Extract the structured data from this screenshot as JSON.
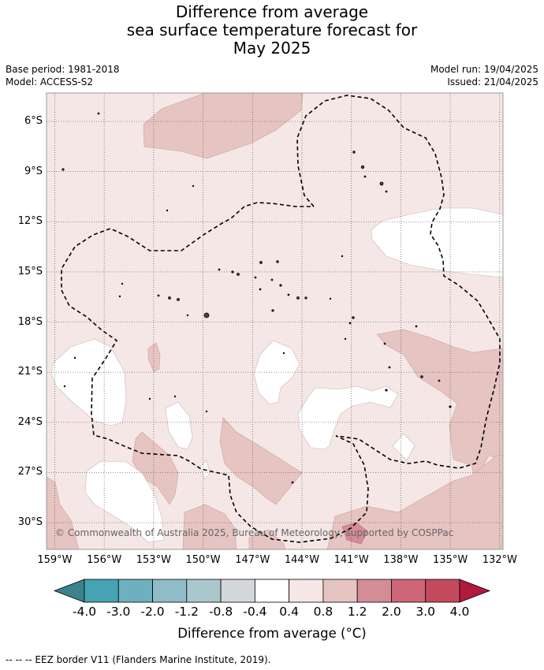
{
  "title": {
    "line1": "Difference from average",
    "line2": "sea surface temperature forecast for",
    "line3": "May 2025"
  },
  "meta": {
    "base_period": "Base period: 1981-2018",
    "model": "Model: ACCESS-S2",
    "model_run": "Model run: 19/04/2025",
    "issued": "Issued: 21/04/2025"
  },
  "map": {
    "lon_range": [
      -159.5,
      -131.8
    ],
    "lat_range": [
      -31.6,
      -4.3
    ],
    "lat_labels": [
      "6°S",
      "9°S",
      "12°S",
      "15°S",
      "18°S",
      "21°S",
      "24°S",
      "27°S",
      "30°S"
    ],
    "lon_labels": [
      "159°W",
      "156°W",
      "153°W",
      "150°W",
      "147°W",
      "144°W",
      "141°W",
      "138°W",
      "135°W",
      "132°W"
    ],
    "copyright": "© Commonwealth of Australia 2025, Bureau of Meteorology, supported by COSPPac",
    "colors": {
      "background_anomaly": "#f5e7e5",
      "near_zero": "#ffffff",
      "warm_0_8_1_2": "#e6c4c1",
      "warm_1_2_2_0": "#d48c96"
    }
  },
  "colorbar": {
    "ticks": [
      "-4.0",
      "-3.0",
      "-2.0",
      "-1.2",
      "-0.8",
      "-0.4",
      "0.4",
      "0.8",
      "1.2",
      "2.0",
      "3.0",
      "4.0"
    ],
    "colors": [
      "#3b828c",
      "#46a3b3",
      "#6db0bf",
      "#8fbcc7",
      "#aac7cc",
      "#d2d8da",
      "#ffffff",
      "#f5e7e5",
      "#e6c4c1",
      "#d48c96",
      "#cd6677",
      "#c24a5c",
      "#b01a3c"
    ],
    "title": "Difference from average (°C)"
  },
  "footer": "--  --  -- EEZ border V11 (Flanders Marine Institute, 2019)."
}
